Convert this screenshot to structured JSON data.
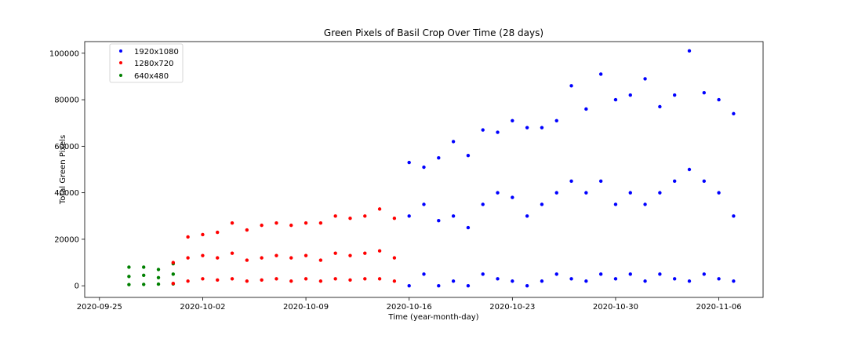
{
  "chart_data": {
    "type": "scatter",
    "title": "Green Pixels of Basil Crop Over Time (28 days)",
    "xlabel": "Time (year-month-day)",
    "ylabel": "Total Green Pixels",
    "x_ticks": [
      "2020-09-25",
      "2020-10-02",
      "2020-10-09",
      "2020-10-16",
      "2020-10-23",
      "2020-10-30",
      "2020-11-06"
    ],
    "y_ticks": [
      0,
      20000,
      40000,
      60000,
      80000,
      100000
    ],
    "y_tick_labels": [
      "0",
      "20000",
      "40000",
      "60000",
      "80000",
      "100000"
    ],
    "xlim": [
      "2020-09-24",
      "2020-11-09"
    ],
    "ylim": [
      -5000,
      105000
    ],
    "legend": {
      "placement": "top-left",
      "entries": [
        {
          "label": "1920x1080",
          "color": "#0000ff"
        },
        {
          "label": "1280x720",
          "color": "#ff0000"
        },
        {
          "label": "640x480",
          "color": "#008000"
        }
      ]
    },
    "series": [
      {
        "name": "640x480",
        "color": "#008000",
        "x": [
          "2020-09-27",
          "2020-09-27",
          "2020-09-27",
          "2020-09-28",
          "2020-09-28",
          "2020-09-28",
          "2020-09-29",
          "2020-09-29",
          "2020-09-29",
          "2020-09-30",
          "2020-09-30",
          "2020-09-30"
        ],
        "y": [
          500,
          4000,
          8000,
          600,
          4500,
          8000,
          700,
          3500,
          7000,
          800,
          5000,
          9500
        ]
      },
      {
        "name": "1280x720",
        "color": "#ff0000",
        "x": [
          "2020-09-30",
          "2020-09-30",
          "2020-10-01",
          "2020-10-01",
          "2020-10-01",
          "2020-10-02",
          "2020-10-02",
          "2020-10-02",
          "2020-10-03",
          "2020-10-03",
          "2020-10-03",
          "2020-10-04",
          "2020-10-04",
          "2020-10-04",
          "2020-10-05",
          "2020-10-05",
          "2020-10-05",
          "2020-10-06",
          "2020-10-06",
          "2020-10-06",
          "2020-10-07",
          "2020-10-07",
          "2020-10-07",
          "2020-10-08",
          "2020-10-08",
          "2020-10-08",
          "2020-10-09",
          "2020-10-09",
          "2020-10-09",
          "2020-10-10",
          "2020-10-10",
          "2020-10-10",
          "2020-10-11",
          "2020-10-11",
          "2020-10-11",
          "2020-10-12",
          "2020-10-12",
          "2020-10-12",
          "2020-10-13",
          "2020-10-13",
          "2020-10-13",
          "2020-10-14",
          "2020-10-14",
          "2020-10-14",
          "2020-10-15",
          "2020-10-15",
          "2020-10-15"
        ],
        "y": [
          1000,
          10000,
          2000,
          12000,
          21000,
          3000,
          13000,
          22000,
          2500,
          12000,
          23000,
          3000,
          14000,
          27000,
          2000,
          11000,
          24000,
          2500,
          12000,
          26000,
          3000,
          13000,
          27000,
          2000,
          12000,
          26000,
          3000,
          13000,
          27000,
          2000,
          11000,
          27000,
          3000,
          14000,
          30000,
          2500,
          13000,
          29000,
          3000,
          14000,
          30000,
          3000,
          15000,
          33000,
          2000,
          12000,
          29000
        ]
      },
      {
        "name": "1920x1080",
        "color": "#0000ff",
        "x": [
          "2020-10-16",
          "2020-10-16",
          "2020-10-16",
          "2020-10-17",
          "2020-10-17",
          "2020-10-17",
          "2020-10-18",
          "2020-10-18",
          "2020-10-18",
          "2020-10-19",
          "2020-10-19",
          "2020-10-19",
          "2020-10-20",
          "2020-10-20",
          "2020-10-20",
          "2020-10-21",
          "2020-10-21",
          "2020-10-21",
          "2020-10-22",
          "2020-10-22",
          "2020-10-22",
          "2020-10-23",
          "2020-10-23",
          "2020-10-23",
          "2020-10-24",
          "2020-10-24",
          "2020-10-24",
          "2020-10-25",
          "2020-10-25",
          "2020-10-25",
          "2020-10-26",
          "2020-10-26",
          "2020-10-26",
          "2020-10-27",
          "2020-10-27",
          "2020-10-27",
          "2020-10-28",
          "2020-10-28",
          "2020-10-28",
          "2020-10-29",
          "2020-10-29",
          "2020-10-29",
          "2020-10-30",
          "2020-10-30",
          "2020-10-30",
          "2020-10-31",
          "2020-10-31",
          "2020-10-31",
          "2020-11-01",
          "2020-11-01",
          "2020-11-01",
          "2020-11-02",
          "2020-11-02",
          "2020-11-02",
          "2020-11-03",
          "2020-11-03",
          "2020-11-03",
          "2020-11-04",
          "2020-11-04",
          "2020-11-04",
          "2020-11-05",
          "2020-11-05",
          "2020-11-05",
          "2020-11-06",
          "2020-11-06",
          "2020-11-06",
          "2020-11-07",
          "2020-11-07",
          "2020-11-07"
        ],
        "y": [
          0,
          30000,
          53000,
          5000,
          35000,
          51000,
          0,
          28000,
          55000,
          2000,
          30000,
          62000,
          0,
          25000,
          56000,
          5000,
          35000,
          67000,
          3000,
          40000,
          66000,
          2000,
          38000,
          71000,
          0,
          30000,
          68000,
          2000,
          35000,
          68000,
          5000,
          40000,
          71000,
          3000,
          45000,
          86000,
          2000,
          40000,
          76000,
          5000,
          45000,
          91000,
          3000,
          35000,
          80000,
          5000,
          40000,
          82000,
          2000,
          35000,
          89000,
          5000,
          40000,
          77000,
          3000,
          45000,
          82000,
          2000,
          50000,
          101000,
          5000,
          45000,
          83000,
          3000,
          40000,
          80000,
          2000,
          30000,
          74000
        ]
      }
    ]
  }
}
